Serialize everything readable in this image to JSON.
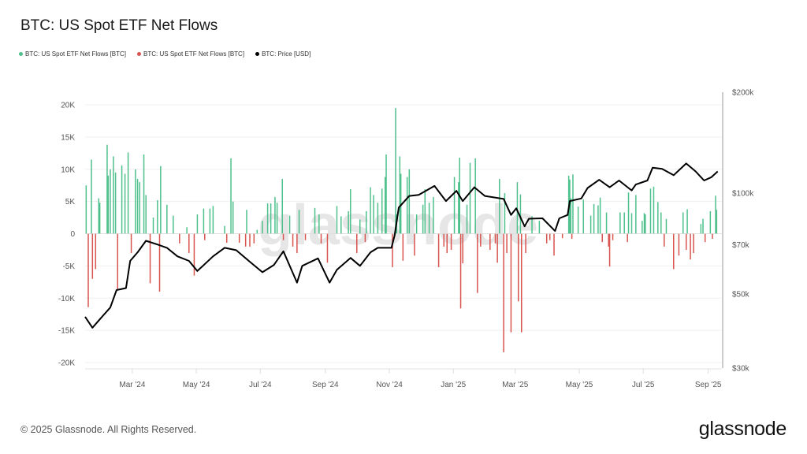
{
  "title": "BTC: US Spot ETF Net Flows",
  "legend": [
    {
      "label": "BTC: US Spot ETF Net Flows [BTC]",
      "color": "#4dc08c"
    },
    {
      "label": "BTC: US Spot ETF Net Flows [BTC]",
      "color": "#d9534f"
    },
    {
      "label": "BTC: Price [USD]",
      "color": "#000000"
    }
  ],
  "watermark": "glassnode",
  "footer": "© 2025 Glassnode. All Rights Reserved.",
  "logo": "glassnode",
  "chart_data": {
    "type": "bar+line",
    "title": "BTC: US Spot ETF Net Flows",
    "xlim": [
      "2024-01-16",
      "2025-09-14"
    ],
    "x_ticks": [
      {
        "date": "2024-03-01",
        "label": "Mar '24"
      },
      {
        "date": "2024-05-01",
        "label": "May '24"
      },
      {
        "date": "2024-07-01",
        "label": "Jul '24"
      },
      {
        "date": "2024-09-01",
        "label": "Sep '24"
      },
      {
        "date": "2024-11-01",
        "label": "Nov '24"
      },
      {
        "date": "2025-01-01",
        "label": "Jan '25"
      },
      {
        "date": "2025-03-01",
        "label": "Mar '25"
      },
      {
        "date": "2025-05-01",
        "label": "May '25"
      },
      {
        "date": "2025-07-01",
        "label": "Jul '25"
      },
      {
        "date": "2025-09-01",
        "label": "Sep '25"
      }
    ],
    "y_left": {
      "ylim": [
        -20000,
        20000
      ],
      "ticks": [
        20000,
        15000,
        10000,
        5000,
        0,
        -5000,
        -10000,
        -15000,
        -20000
      ],
      "tick_labels": [
        "20K",
        "15K",
        "10K",
        "5K",
        "0",
        "-5K",
        "-10K",
        "-15K",
        "-20K"
      ],
      "grid": true
    },
    "y_right": {
      "scale": "log",
      "ylim": [
        30000,
        200000
      ],
      "ticks": [
        200000,
        100000,
        70000,
        50000,
        30000
      ],
      "tick_labels": [
        "$200k",
        "$100k",
        "$70k",
        "$50k",
        "$30k"
      ]
    },
    "series": [
      {
        "name": "BTC: US Spot ETF Net Flows [BTC]",
        "kind": "bar",
        "positive_color": "#4dc08c",
        "negative_color": "#d9534f",
        "points": [
          [
            "2024-01-17",
            7500
          ],
          [
            "2024-01-19",
            -11400
          ],
          [
            "2024-01-22",
            11500
          ],
          [
            "2024-01-23",
            -7000
          ],
          [
            "2024-01-26",
            -5500
          ],
          [
            "2024-01-29",
            5500
          ],
          [
            "2024-01-30",
            4800
          ],
          [
            "2024-02-06",
            13800
          ],
          [
            "2024-02-07",
            9000
          ],
          [
            "2024-02-09",
            10000
          ],
          [
            "2024-02-12",
            12000
          ],
          [
            "2024-02-14",
            9500
          ],
          [
            "2024-02-16",
            -8600
          ],
          [
            "2024-02-20",
            10600
          ],
          [
            "2024-02-23",
            9300
          ],
          [
            "2024-02-26",
            12600
          ],
          [
            "2024-02-29",
            -3000
          ],
          [
            "2024-03-04",
            10000
          ],
          [
            "2024-03-06",
            8500
          ],
          [
            "2024-03-08",
            8000
          ],
          [
            "2024-03-12",
            12300
          ],
          [
            "2024-03-14",
            6000
          ],
          [
            "2024-03-18",
            -7700
          ],
          [
            "2024-03-21",
            2500
          ],
          [
            "2024-03-25",
            5200
          ],
          [
            "2024-03-27",
            -9000
          ],
          [
            "2024-03-28",
            10500
          ],
          [
            "2024-04-03",
            4500
          ],
          [
            "2024-04-09",
            2800
          ],
          [
            "2024-04-15",
            -1500
          ],
          [
            "2024-04-22",
            1000
          ],
          [
            "2024-04-24",
            -3000
          ],
          [
            "2024-04-29",
            -6500
          ],
          [
            "2024-05-02",
            3000
          ],
          [
            "2024-05-08",
            3900
          ],
          [
            "2024-05-09",
            -1000
          ],
          [
            "2024-05-14",
            3900
          ],
          [
            "2024-05-17",
            4300
          ],
          [
            "2024-05-28",
            1200
          ],
          [
            "2024-05-30",
            -1400
          ],
          [
            "2024-06-03",
            11700
          ],
          [
            "2024-06-05",
            5000
          ],
          [
            "2024-06-11",
            -1400
          ],
          [
            "2024-06-17",
            -2000
          ],
          [
            "2024-06-18",
            3700
          ],
          [
            "2024-06-21",
            -2000
          ],
          [
            "2024-06-25",
            -1500
          ],
          [
            "2024-06-28",
            600
          ],
          [
            "2024-07-03",
            2000
          ],
          [
            "2024-07-08",
            4700
          ],
          [
            "2024-07-11",
            4700
          ],
          [
            "2024-07-15",
            5700
          ],
          [
            "2024-07-17",
            4800
          ],
          [
            "2024-07-22",
            8500
          ],
          [
            "2024-07-23",
            -1000
          ],
          [
            "2024-07-29",
            2800
          ],
          [
            "2024-08-01",
            -2000
          ],
          [
            "2024-08-05",
            -3000
          ],
          [
            "2024-08-07",
            3700
          ],
          [
            "2024-08-13",
            -1000
          ],
          [
            "2024-08-22",
            4000
          ],
          [
            "2024-08-26",
            3000
          ],
          [
            "2024-08-28",
            -1500
          ],
          [
            "2024-09-03",
            -4500
          ],
          [
            "2024-09-12",
            4300
          ],
          [
            "2024-09-16",
            2700
          ],
          [
            "2024-09-23",
            3500
          ],
          [
            "2024-09-25",
            6900
          ],
          [
            "2024-10-01",
            -3000
          ],
          [
            "2024-10-04",
            2200
          ],
          [
            "2024-10-09",
            -1300
          ],
          [
            "2024-10-10",
            3500
          ],
          [
            "2024-10-14",
            7200
          ],
          [
            "2024-10-17",
            6000
          ],
          [
            "2024-10-21",
            4800
          ],
          [
            "2024-10-25",
            7000
          ],
          [
            "2024-10-28",
            8800
          ],
          [
            "2024-10-29",
            12300
          ],
          [
            "2024-11-04",
            -5200
          ],
          [
            "2024-11-07",
            19500
          ],
          [
            "2024-11-08",
            3000
          ],
          [
            "2024-11-11",
            12000
          ],
          [
            "2024-11-12",
            9300
          ],
          [
            "2024-11-14",
            -4200
          ],
          [
            "2024-11-18",
            8800
          ],
          [
            "2024-11-20",
            10000
          ],
          [
            "2024-11-25",
            -3400
          ],
          [
            "2024-11-27",
            3000
          ],
          [
            "2024-12-03",
            4500
          ],
          [
            "2024-12-05",
            6900
          ],
          [
            "2024-12-09",
            4800
          ],
          [
            "2024-12-13",
            5700
          ],
          [
            "2024-12-18",
            -5200
          ],
          [
            "2024-12-23",
            -2000
          ],
          [
            "2024-12-26",
            -3000
          ],
          [
            "2024-12-30",
            -2500
          ],
          [
            "2025-01-02",
            8800
          ],
          [
            "2025-01-06",
            8000
          ],
          [
            "2025-01-07",
            11800
          ],
          [
            "2025-01-08",
            -11600
          ],
          [
            "2025-01-10",
            -4600
          ],
          [
            "2025-01-14",
            4500
          ],
          [
            "2025-01-17",
            11000
          ],
          [
            "2025-01-22",
            11700
          ],
          [
            "2025-01-24",
            -9200
          ],
          [
            "2025-01-27",
            -2000
          ],
          [
            "2025-02-05",
            -2500
          ],
          [
            "2025-02-10",
            -1500
          ],
          [
            "2025-02-12",
            -4500
          ],
          [
            "2025-02-14",
            8500
          ],
          [
            "2025-02-18",
            -18400
          ],
          [
            "2025-02-19",
            6300
          ],
          [
            "2025-02-21",
            -3000
          ],
          [
            "2025-02-25",
            -15300
          ],
          [
            "2025-03-03",
            8000
          ],
          [
            "2025-03-04",
            -10500
          ],
          [
            "2025-03-06",
            6100
          ],
          [
            "2025-03-07",
            -15300
          ],
          [
            "2025-03-11",
            -3000
          ],
          [
            "2025-03-17",
            2700
          ],
          [
            "2025-03-24",
            2000
          ],
          [
            "2025-03-31",
            -1500
          ],
          [
            "2025-04-03",
            -1000
          ],
          [
            "2025-04-07",
            -3400
          ],
          [
            "2025-04-15",
            -700
          ],
          [
            "2025-04-21",
            9000
          ],
          [
            "2025-04-22",
            8400
          ],
          [
            "2025-04-23",
            5500
          ],
          [
            "2025-04-24",
            -800
          ],
          [
            "2025-04-25",
            9200
          ],
          [
            "2025-04-30",
            4200
          ],
          [
            "2025-05-05",
            5300
          ],
          [
            "2025-05-12",
            2800
          ],
          [
            "2025-05-15",
            4600
          ],
          [
            "2025-05-19",
            4400
          ],
          [
            "2025-05-21",
            5600
          ],
          [
            "2025-05-23",
            -1300
          ],
          [
            "2025-05-27",
            3300
          ],
          [
            "2025-05-29",
            -2000
          ],
          [
            "2025-05-30",
            -5100
          ],
          [
            "2025-06-02",
            -1000
          ],
          [
            "2025-06-09",
            3300
          ],
          [
            "2025-06-13",
            3300
          ],
          [
            "2025-06-16",
            -1300
          ],
          [
            "2025-06-17",
            6400
          ],
          [
            "2025-06-20",
            3200
          ],
          [
            "2025-06-24",
            6000
          ],
          [
            "2025-06-30",
            2000
          ],
          [
            "2025-07-02",
            3200
          ],
          [
            "2025-07-03",
            3000
          ],
          [
            "2025-07-08",
            7000
          ],
          [
            "2025-07-11",
            7300
          ],
          [
            "2025-07-15",
            4900
          ],
          [
            "2025-07-18",
            3300
          ],
          [
            "2025-07-21",
            -2000
          ],
          [
            "2025-07-23",
            2300
          ],
          [
            "2025-07-30",
            -5500
          ],
          [
            "2025-08-04",
            -3400
          ],
          [
            "2025-08-08",
            3300
          ],
          [
            "2025-08-11",
            -2500
          ],
          [
            "2025-08-12",
            3800
          ],
          [
            "2025-08-15",
            -4000
          ],
          [
            "2025-08-18",
            -3000
          ],
          [
            "2025-08-25",
            1500
          ],
          [
            "2025-08-27",
            2300
          ],
          [
            "2025-08-29",
            -1300
          ],
          [
            "2025-09-03",
            3500
          ],
          [
            "2025-09-05",
            -800
          ],
          [
            "2025-09-08",
            5900
          ],
          [
            "2025-09-09",
            3700
          ]
        ]
      },
      {
        "name": "BTC: Price [USD]",
        "kind": "line",
        "axis": "right",
        "color": "#000000",
        "points": [
          [
            "2024-01-16",
            42700
          ],
          [
            "2024-01-23",
            39600
          ],
          [
            "2024-02-02",
            43000
          ],
          [
            "2024-02-09",
            45500
          ],
          [
            "2024-02-15",
            51300
          ],
          [
            "2024-02-24",
            52000
          ],
          [
            "2024-02-28",
            62700
          ],
          [
            "2024-03-06",
            66500
          ],
          [
            "2024-03-14",
            72000
          ],
          [
            "2024-03-25",
            70200
          ],
          [
            "2024-04-03",
            68600
          ],
          [
            "2024-04-13",
            64700
          ],
          [
            "2024-04-24",
            62700
          ],
          [
            "2024-05-02",
            58500
          ],
          [
            "2024-05-17",
            64700
          ],
          [
            "2024-05-28",
            68600
          ],
          [
            "2024-06-08",
            67500
          ],
          [
            "2024-06-20",
            62700
          ],
          [
            "2024-07-03",
            58000
          ],
          [
            "2024-07-14",
            61000
          ],
          [
            "2024-07-23",
            67000
          ],
          [
            "2024-08-05",
            54000
          ],
          [
            "2024-08-10",
            60600
          ],
          [
            "2024-08-25",
            63800
          ],
          [
            "2024-09-05",
            54000
          ],
          [
            "2024-09-12",
            59000
          ],
          [
            "2024-09-25",
            64000
          ],
          [
            "2024-10-04",
            60600
          ],
          [
            "2024-10-14",
            66500
          ],
          [
            "2024-10-21",
            68600
          ],
          [
            "2024-11-03",
            68600
          ],
          [
            "2024-11-06",
            74600
          ],
          [
            "2024-11-10",
            90500
          ],
          [
            "2024-11-20",
            98000
          ],
          [
            "2024-11-29",
            98700
          ],
          [
            "2024-12-14",
            105000
          ],
          [
            "2024-12-25",
            94600
          ],
          [
            "2025-01-04",
            101500
          ],
          [
            "2025-01-10",
            94600
          ],
          [
            "2025-01-21",
            104000
          ],
          [
            "2025-01-31",
            98000
          ],
          [
            "2025-02-18",
            96000
          ],
          [
            "2025-02-25",
            86000
          ],
          [
            "2025-03-02",
            90000
          ],
          [
            "2025-03-10",
            79500
          ],
          [
            "2025-03-14",
            83800
          ],
          [
            "2025-03-27",
            84000
          ],
          [
            "2025-04-08",
            77000
          ],
          [
            "2025-04-12",
            84000
          ],
          [
            "2025-04-20",
            86000
          ],
          [
            "2025-04-22",
            94600
          ],
          [
            "2025-05-03",
            96300
          ],
          [
            "2025-05-09",
            103500
          ],
          [
            "2025-05-20",
            109500
          ],
          [
            "2025-05-30",
            104000
          ],
          [
            "2025-06-08",
            109000
          ],
          [
            "2025-06-20",
            101800
          ],
          [
            "2025-06-24",
            106000
          ],
          [
            "2025-07-05",
            109000
          ],
          [
            "2025-07-10",
            119000
          ],
          [
            "2025-07-19",
            118000
          ],
          [
            "2025-07-30",
            113000
          ],
          [
            "2025-08-11",
            122500
          ],
          [
            "2025-08-20",
            116000
          ],
          [
            "2025-08-28",
            109000
          ],
          [
            "2025-09-04",
            111500
          ],
          [
            "2025-09-10",
            116000
          ]
        ]
      }
    ],
    "legend_position": "top-left"
  }
}
